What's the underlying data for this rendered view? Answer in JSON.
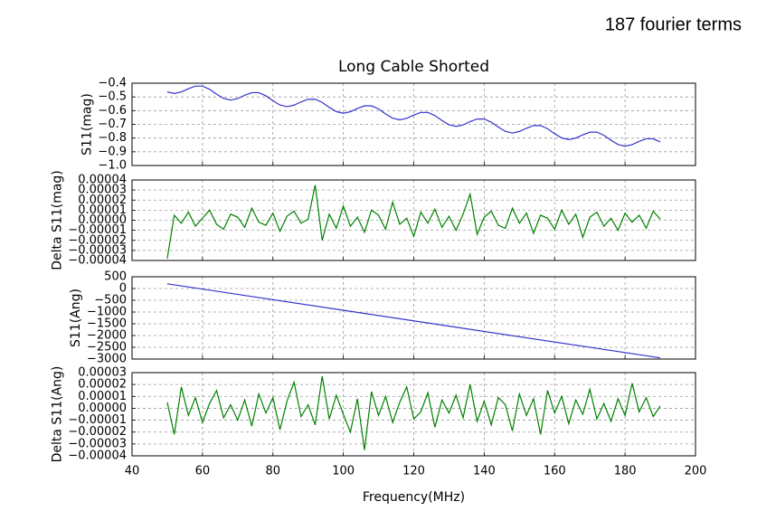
{
  "header": {
    "text": "187 fourier terms"
  },
  "chart_data": [
    {
      "type": "line",
      "title": "Long Cable Shorted",
      "ylabel": "S11(mag)",
      "color": "#3333cc",
      "grid": true,
      "x": [
        50,
        52,
        54,
        56,
        58,
        60,
        62,
        64,
        66,
        68,
        70,
        72,
        74,
        76,
        78,
        80,
        82,
        84,
        86,
        88,
        90,
        92,
        94,
        96,
        98,
        100,
        102,
        104,
        106,
        108,
        110,
        112,
        114,
        116,
        118,
        120,
        122,
        124,
        126,
        128,
        130,
        132,
        134,
        136,
        138,
        140,
        142,
        144,
        146,
        148,
        150,
        152,
        154,
        156,
        158,
        160,
        162,
        164,
        166,
        168,
        170,
        172,
        174,
        176,
        178,
        180,
        182,
        184,
        186,
        188,
        190
      ],
      "values": [
        -0.463,
        -0.475,
        -0.464,
        -0.44,
        -0.421,
        -0.421,
        -0.444,
        -0.48,
        -0.511,
        -0.523,
        -0.512,
        -0.488,
        -0.469,
        -0.469,
        -0.492,
        -0.528,
        -0.559,
        -0.571,
        -0.56,
        -0.536,
        -0.517,
        -0.517,
        -0.54,
        -0.576,
        -0.607,
        -0.619,
        -0.608,
        -0.584,
        -0.565,
        -0.565,
        -0.588,
        -0.624,
        -0.655,
        -0.667,
        -0.656,
        -0.632,
        -0.613,
        -0.613,
        -0.636,
        -0.672,
        -0.703,
        -0.715,
        -0.704,
        -0.68,
        -0.661,
        -0.661,
        -0.684,
        -0.72,
        -0.751,
        -0.763,
        -0.752,
        -0.728,
        -0.709,
        -0.709,
        -0.732,
        -0.768,
        -0.799,
        -0.811,
        -0.8,
        -0.776,
        -0.757,
        -0.757,
        -0.78,
        -0.816,
        -0.847,
        -0.859,
        -0.848,
        -0.824,
        -0.805,
        -0.805,
        -0.828
      ],
      "ylim": [
        -1.0,
        -0.4
      ],
      "yticks": [
        {
          "value": -1.0,
          "label": "−1.0"
        },
        {
          "value": -0.9,
          "label": "−0.9"
        },
        {
          "value": -0.8,
          "label": "−0.8"
        },
        {
          "value": -0.7,
          "label": "−0.7"
        },
        {
          "value": -0.6,
          "label": "−0.6"
        },
        {
          "value": -0.5,
          "label": "−0.5"
        },
        {
          "value": -0.4,
          "label": "−0.4"
        }
      ]
    },
    {
      "type": "line",
      "ylabel": "Delta S11(mag)",
      "color": "#008000",
      "grid": true,
      "x": [
        50,
        52,
        54,
        56,
        58,
        60,
        62,
        64,
        66,
        68,
        70,
        72,
        74,
        76,
        78,
        80,
        82,
        84,
        86,
        88,
        90,
        92,
        94,
        96,
        98,
        100,
        102,
        104,
        106,
        108,
        110,
        112,
        114,
        116,
        118,
        120,
        122,
        124,
        126,
        128,
        130,
        132,
        134,
        136,
        138,
        140,
        142,
        144,
        146,
        148,
        150,
        152,
        154,
        156,
        158,
        160,
        162,
        164,
        166,
        168,
        170,
        172,
        174,
        176,
        178,
        180,
        182,
        184,
        186,
        188,
        190
      ],
      "values": [
        -3.8e-05,
        5e-06,
        -3e-06,
        8e-06,
        -6e-06,
        2e-06,
        1e-05,
        -4e-06,
        -9e-06,
        6e-06,
        3e-06,
        -7e-06,
        1.2e-05,
        -2e-06,
        -5e-06,
        7e-06,
        -1.1e-05,
        4e-06,
        9e-06,
        -3e-06,
        1e-06,
        3.5e-05,
        -2e-05,
        6e-06,
        -8e-06,
        1.4e-05,
        -6e-06,
        3e-06,
        -1.2e-05,
        1e-05,
        5e-06,
        -9e-06,
        1.8e-05,
        -4e-06,
        2e-06,
        -1.6e-05,
        8e-06,
        -3e-06,
        1.1e-05,
        -7e-06,
        4e-06,
        -1e-05,
        6e-06,
        2.6e-05,
        -1.4e-05,
        3e-06,
        9e-06,
        -5e-06,
        -8e-06,
        1.2e-05,
        -3e-06,
        7e-06,
        -1.3e-05,
        5e-06,
        2e-06,
        -9e-06,
        1e-05,
        -4e-06,
        6e-06,
        -1.7e-05,
        3e-06,
        8e-06,
        -6e-06,
        2e-06,
        -1e-05,
        7e-06,
        -2e-06,
        5e-06,
        -8e-06,
        9e-06,
        1e-06
      ],
      "ylim": [
        -4e-05,
        4e-05
      ],
      "yticks": [
        {
          "value": -4e-05,
          "label": "−0.00004"
        },
        {
          "value": -3e-05,
          "label": "−0.00003"
        },
        {
          "value": -2e-05,
          "label": "−0.00002"
        },
        {
          "value": -1e-05,
          "label": "−0.00001"
        },
        {
          "value": 0,
          "label": "0.00000"
        },
        {
          "value": 1e-05,
          "label": "0.00001"
        },
        {
          "value": 2e-05,
          "label": "0.00002"
        },
        {
          "value": 3e-05,
          "label": "0.00003"
        },
        {
          "value": 4e-05,
          "label": "0.00004"
        }
      ]
    },
    {
      "type": "line",
      "ylabel": "S11(Ang)",
      "color": "#3333cc",
      "grid": true,
      "x": [
        50,
        190
      ],
      "values": [
        200,
        -2950
      ],
      "ylim": [
        -3000,
        500
      ],
      "yticks": [
        {
          "value": -3000,
          "label": "−3000"
        },
        {
          "value": -2500,
          "label": "−2500"
        },
        {
          "value": -2000,
          "label": "−2000"
        },
        {
          "value": -1500,
          "label": "−1500"
        },
        {
          "value": -1000,
          "label": "−1000"
        },
        {
          "value": -500,
          "label": "−500"
        },
        0,
        500
      ]
    },
    {
      "type": "line",
      "ylabel": "Delta S11(Ang)",
      "xlabel": "Frequency(MHz)",
      "color": "#008000",
      "grid": true,
      "x": [
        50,
        52,
        54,
        56,
        58,
        60,
        62,
        64,
        66,
        68,
        70,
        72,
        74,
        76,
        78,
        80,
        82,
        84,
        86,
        88,
        90,
        92,
        94,
        96,
        98,
        100,
        102,
        104,
        106,
        108,
        110,
        112,
        114,
        116,
        118,
        120,
        122,
        124,
        126,
        128,
        130,
        132,
        134,
        136,
        138,
        140,
        142,
        144,
        146,
        148,
        150,
        152,
        154,
        156,
        158,
        160,
        162,
        164,
        166,
        168,
        170,
        172,
        174,
        176,
        178,
        180,
        182,
        184,
        186,
        188,
        190
      ],
      "values": [
        5e-06,
        -2.2e-05,
        1.8e-05,
        -6e-06,
        9e-06,
        -1.2e-05,
        4e-06,
        1.5e-05,
        -8e-06,
        3e-06,
        -1e-05,
        7e-06,
        -1.5e-05,
        1.2e-05,
        -4e-06,
        9e-06,
        -1.8e-05,
        6e-06,
        2.2e-05,
        -7e-06,
        3e-06,
        -1.4e-05,
        2.7e-05,
        -9e-06,
        1.1e-05,
        -5e-06,
        -2e-05,
        8e-06,
        -3.5e-05,
        1.4e-05,
        -6e-06,
        1e-05,
        -1.2e-05,
        5e-06,
        1.8e-05,
        -9e-06,
        -3e-06,
        1.3e-05,
        -1.6e-05,
        7e-06,
        -4e-06,
        1.1e-05,
        -8e-06,
        2e-05,
        -1.1e-05,
        6e-06,
        -1.4e-05,
        9e-06,
        3e-06,
        -1.9e-05,
        1.2e-05,
        -6e-06,
        8e-06,
        -2.2e-05,
        1.5e-05,
        -4e-06,
        1e-05,
        -1.3e-05,
        7e-06,
        -5e-06,
        1.6e-05,
        -9e-06,
        4e-06,
        -1.1e-05,
        8e-06,
        -6e-06,
        2.1e-05,
        -3e-06,
        9e-06,
        -7e-06,
        2e-06
      ],
      "ylim": [
        -4e-05,
        3e-05
      ],
      "yticks": [
        {
          "value": -4e-05,
          "label": "−0.00004"
        },
        {
          "value": -3e-05,
          "label": "−0.00003"
        },
        {
          "value": -2e-05,
          "label": "−0.00002"
        },
        {
          "value": -1e-05,
          "label": "−0.00001"
        },
        {
          "value": 0,
          "label": "0.00000"
        },
        {
          "value": 1e-05,
          "label": "0.00001"
        },
        {
          "value": 2e-05,
          "label": "0.00002"
        },
        {
          "value": 3e-05,
          "label": "0.00003"
        }
      ],
      "xlim": [
        40,
        200
      ],
      "xticks": [
        40,
        60,
        80,
        100,
        120,
        140,
        160,
        180,
        200
      ]
    }
  ]
}
